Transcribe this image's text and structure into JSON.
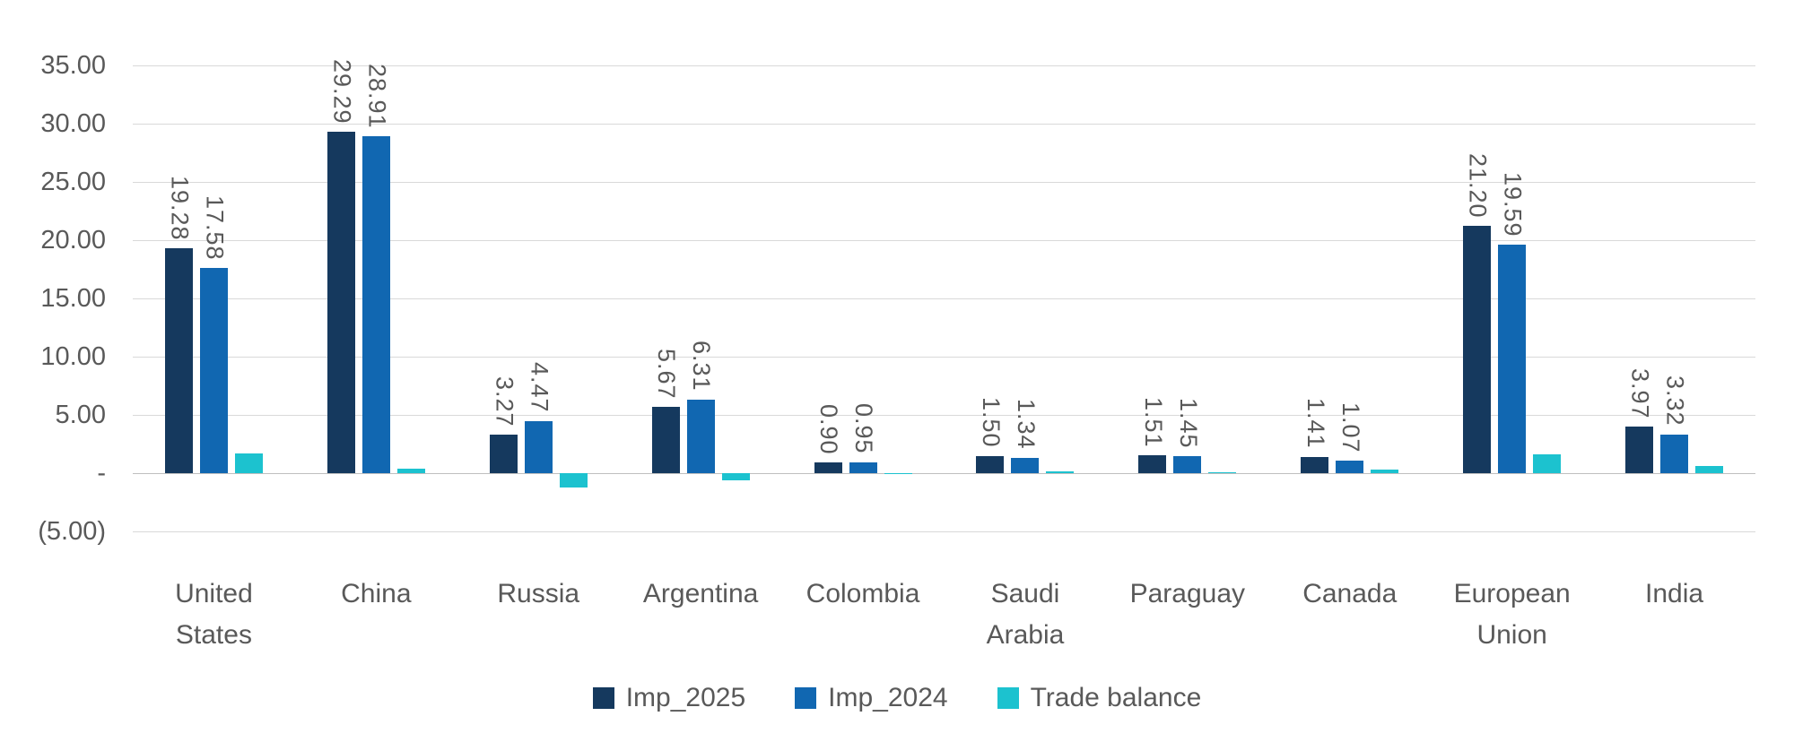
{
  "chart_data": {
    "type": "bar",
    "title": "",
    "xlabel": "",
    "ylabel": "",
    "categories": [
      "United States",
      "China",
      "Russia",
      "Argentina",
      "Colombia",
      "Saudi Arabia",
      "Paraguay",
      "Canada",
      "European Union",
      "India"
    ],
    "category_label_lines": [
      [
        "United",
        "States"
      ],
      [
        "China"
      ],
      [
        "Russia"
      ],
      [
        "Argentina"
      ],
      [
        "Colombia"
      ],
      [
        "Saudi",
        "Arabia"
      ],
      [
        "Paraguay"
      ],
      [
        "Canada"
      ],
      [
        "European",
        "Union"
      ],
      [
        "India"
      ]
    ],
    "series": [
      {
        "name": "Imp_2025",
        "color": "#15395e",
        "values": [
          19.28,
          29.29,
          3.27,
          5.67,
          0.9,
          1.5,
          1.51,
          1.41,
          21.2,
          3.97
        ],
        "data_labels": [
          "19.28",
          "29.29",
          "3.27",
          "5.67",
          "0.90",
          "1.50",
          "1.51",
          "1.41",
          "21.20",
          "3.97"
        ]
      },
      {
        "name": "Imp_2024",
        "color": "#1167b1",
        "values": [
          17.58,
          28.91,
          4.47,
          6.31,
          0.95,
          1.34,
          1.45,
          1.07,
          19.59,
          3.32
        ],
        "data_labels": [
          "17.58",
          "28.91",
          "4.47",
          "6.31",
          "0.95",
          "1.34",
          "1.45",
          "1.07",
          "19.59",
          "3.32"
        ]
      },
      {
        "name": "Trade balance",
        "color": "#1cc2cf",
        "values": [
          1.7,
          0.38,
          -1.2,
          -0.64,
          -0.05,
          0.16,
          0.06,
          0.34,
          1.61,
          0.65
        ],
        "data_labels": null
      }
    ],
    "y_axis": {
      "min": -5,
      "max": 35,
      "tick_step": 5,
      "ticks": [
        {
          "value": 35,
          "label": "35.00"
        },
        {
          "value": 30,
          "label": "30.00"
        },
        {
          "value": 25,
          "label": "25.00"
        },
        {
          "value": 20,
          "label": "20.00"
        },
        {
          "value": 15,
          "label": "15.00"
        },
        {
          "value": 10,
          "label": "10.00"
        },
        {
          "value": 5,
          "label": "5.00"
        },
        {
          "value": 0,
          "label": "-"
        },
        {
          "value": -5,
          "label": "(5.00)"
        }
      ]
    },
    "grid": true,
    "legend_position": "bottom",
    "colors": {
      "gridline": "#d9d9d9",
      "zero_line": "#bfbfbf",
      "text": "#595959"
    }
  }
}
